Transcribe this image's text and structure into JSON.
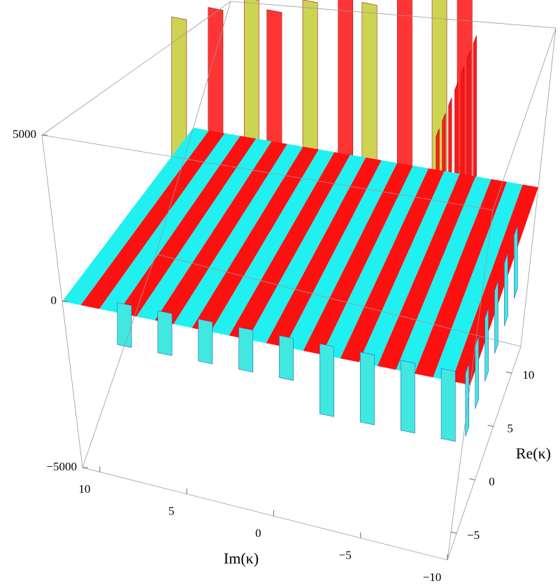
{
  "chart_data": {
    "type": "surface3d",
    "x_label": "Im(κ)",
    "y_label": "Re(κ)",
    "xlim": [
      11,
      -10
    ],
    "ylim": [
      -7.5,
      12.5
    ],
    "zlim": [
      -5000,
      5000
    ],
    "xticks": [
      10,
      5,
      0,
      {
        "value": -5,
        "label": "−5"
      },
      {
        "value": -10,
        "label": "−10"
      }
    ],
    "yticks": [
      {
        "value": -5,
        "label": "−5"
      },
      0,
      5,
      10
    ],
    "zticks": [
      {
        "value": -5000,
        "label": "−5000"
      },
      0,
      5000
    ]
  }
}
